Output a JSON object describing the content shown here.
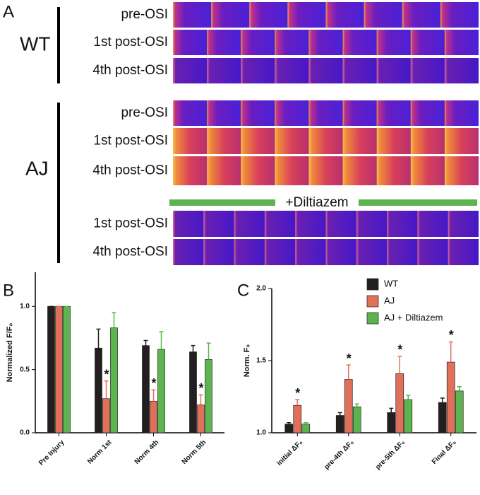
{
  "panel_a": {
    "label": "A",
    "groups": [
      {
        "name": "WT",
        "rows": [
          "pre-OSI",
          "1st post-OSI",
          "4th post-OSI"
        ]
      },
      {
        "name": "AJ",
        "rows": [
          "pre-OSI",
          "1st post-OSI",
          "4th post-OSI"
        ]
      },
      {
        "treatment": "+Diltiazem",
        "rows": [
          "1st post-OSI",
          "4th post-OSI"
        ]
      }
    ]
  },
  "chart_data": [
    {
      "type": "bar",
      "panel_label": "B",
      "ylabel": "Normalized F/F₀",
      "categories": [
        "Pre Injury",
        "Norm 1st",
        "Norm 4th",
        "Norm 5th"
      ],
      "series": [
        {
          "name": "WT",
          "color": "#231f20",
          "values": [
            1.0,
            0.67,
            0.69,
            0.64
          ],
          "errors": [
            0,
            0.15,
            0.04,
            0.05
          ]
        },
        {
          "name": "AJ",
          "color": "#e0705a",
          "values": [
            1.0,
            0.27,
            0.25,
            0.22
          ],
          "errors": [
            0,
            0.14,
            0.09,
            0.08
          ],
          "significance": [
            null,
            "*",
            "*",
            "*"
          ]
        },
        {
          "name": "AJ + Diltiazem",
          "color": "#5cb34f",
          "values": [
            1.0,
            0.83,
            0.66,
            0.58
          ],
          "errors": [
            0,
            0.12,
            0.14,
            0.13
          ]
        }
      ],
      "ylim": [
        0,
        1.27
      ],
      "yticks": [
        {
          "value": 0,
          "label": "0.0"
        },
        0.5,
        {
          "value": 1,
          "label": "1.0"
        }
      ],
      "legend": false
    },
    {
      "type": "bar",
      "panel_label": "C",
      "ylabel": "Norm. F₀",
      "categories": [
        "initial ΔF₀",
        "pre-4th ΔF₀",
        "pre-5th ΔF₀",
        "Final ΔF₀"
      ],
      "series": [
        {
          "name": "WT",
          "color": "#231f20",
          "values": [
            1.06,
            1.12,
            1.14,
            1.21
          ],
          "errors": [
            0.01,
            0.02,
            0.03,
            0.03
          ]
        },
        {
          "name": "AJ",
          "color": "#e0705a",
          "values": [
            1.19,
            1.37,
            1.41,
            1.49
          ],
          "errors": [
            0.04,
            0.1,
            0.12,
            0.14
          ],
          "significance": [
            "*",
            "*",
            "*",
            "*"
          ]
        },
        {
          "name": "AJ + Diltiazem",
          "color": "#5cb34f",
          "values": [
            1.06,
            1.18,
            1.23,
            1.29
          ],
          "errors": [
            0.01,
            0.02,
            0.03,
            0.03
          ]
        }
      ],
      "ylim": [
        1.0,
        2.0
      ],
      "yticks": [
        {
          "value": 1,
          "label": "1.0"
        },
        1.5,
        {
          "value": 2,
          "label": "2.0"
        }
      ],
      "legend": true
    }
  ]
}
